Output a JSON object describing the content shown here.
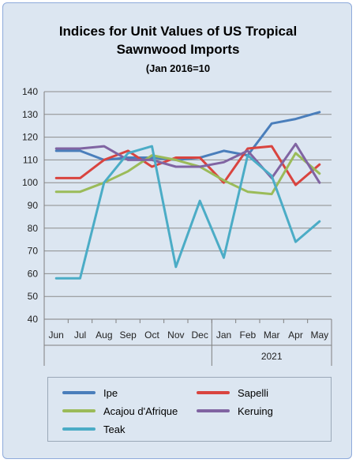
{
  "chart_data": {
    "type": "line",
    "title": "Indices for Unit Values of US Tropical",
    "title_line2": "Sawnwood Imports",
    "subtitle": "(Jan 2016=10",
    "categories": [
      "Jun",
      "Jul",
      "Aug",
      "Sep",
      "Oct",
      "Nov",
      "Dec",
      "Jan",
      "Feb",
      "Mar",
      "Apr",
      "May"
    ],
    "year_label": "2021",
    "ylim": [
      40,
      140
    ],
    "yticks": [
      40,
      50,
      60,
      70,
      80,
      90,
      100,
      110,
      120,
      130,
      140
    ],
    "grid": true,
    "legend_position": "bottom",
    "series": [
      {
        "name": "Ipe",
        "color": "#4a7ebb",
        "values": [
          114,
          114,
          110,
          111,
          111,
          110,
          111,
          114,
          112,
          126,
          128,
          131
        ]
      },
      {
        "name": "Sapelli",
        "color": "#d9443f",
        "values": [
          102,
          102,
          110,
          114,
          107,
          111,
          111,
          100,
          115,
          116,
          99,
          108
        ]
      },
      {
        "name": "Acajou d'Afrique",
        "color": "#9bbb59",
        "values": [
          96,
          96,
          100,
          105,
          112,
          110,
          107,
          101,
          96,
          95,
          113,
          104
        ]
      },
      {
        "name": "Keruing",
        "color": "#8064a2",
        "values": [
          115,
          115,
          116,
          110,
          110,
          107,
          107,
          109,
          114,
          102,
          117,
          100
        ]
      },
      {
        "name": "Teak",
        "color": "#4bacc6",
        "values": [
          58,
          58,
          100,
          113,
          116,
          63,
          92,
          67,
          112,
          103,
          74,
          83
        ]
      }
    ]
  }
}
